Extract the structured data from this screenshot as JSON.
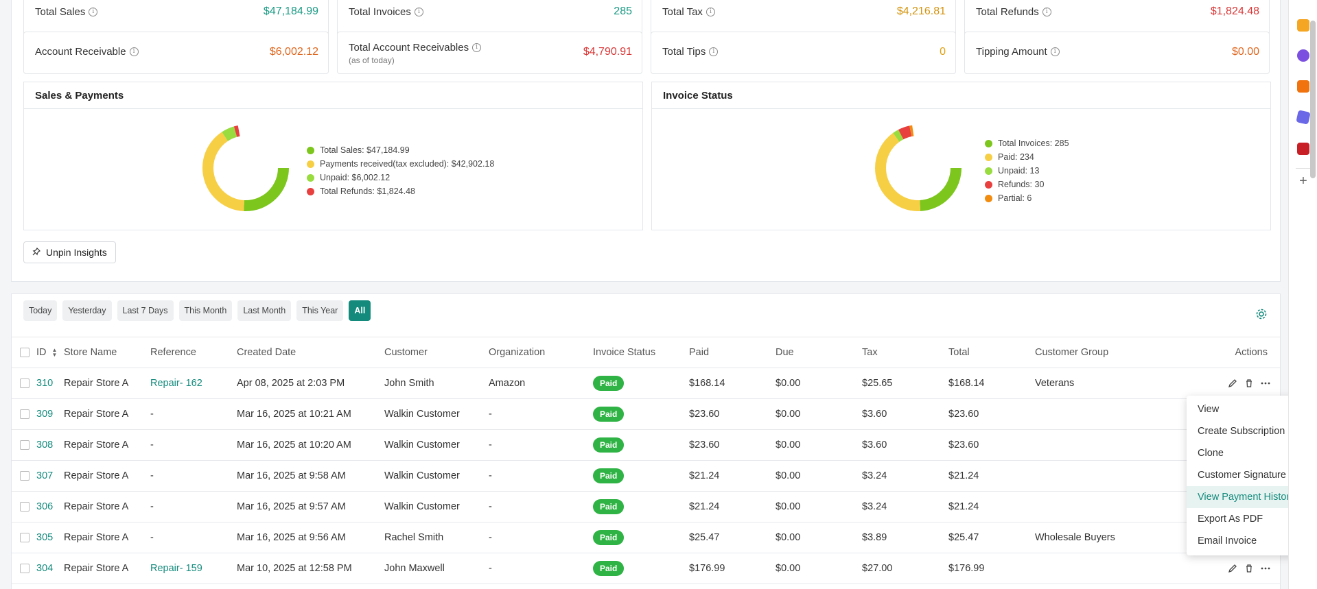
{
  "stats_row1": [
    {
      "label": "Total Sales",
      "value": "$47,184.99",
      "color": "#1a9a84"
    },
    {
      "label": "Total Invoices",
      "value": "285",
      "color": "#1a9a84"
    },
    {
      "label": "Total Tax",
      "value": "$4,216.81",
      "color": "#d4940f"
    },
    {
      "label": "Total Refunds",
      "value": "$1,824.48",
      "color": "#d93636"
    }
  ],
  "stats_row2": [
    {
      "label": "Account Receivable",
      "value": "$6,002.12",
      "color": "#e0651c"
    },
    {
      "label": "Total Account Receivables",
      "sub": "(as of today)",
      "value": "$4,790.91",
      "color": "#d93636"
    },
    {
      "label": "Total Tips",
      "value": "0",
      "color": "#e0a010"
    },
    {
      "label": "Tipping Amount",
      "value": "$0.00",
      "color": "#e0651c"
    }
  ],
  "sales_payments": {
    "title": "Sales & Payments",
    "legend": [
      {
        "label": "Total Sales: $47,184.99",
        "color": "#7cc61d"
      },
      {
        "label": "Payments received(tax excluded): $42,902.18",
        "color": "#f7cf45"
      },
      {
        "label": "Unpaid: $6,002.12",
        "color": "#98dc3f"
      },
      {
        "label": "Total Refunds: $1,824.48",
        "color": "#e8403e"
      }
    ]
  },
  "invoice_status": {
    "title": "Invoice Status",
    "legend": [
      {
        "label": "Total Invoices: 285",
        "color": "#7cc61d"
      },
      {
        "label": "Paid: 234",
        "color": "#f7cf45"
      },
      {
        "label": "Unpaid: 13",
        "color": "#98dc3f"
      },
      {
        "label": "Refunds: 30",
        "color": "#e8403e"
      },
      {
        "label": "Partial: 6",
        "color": "#f28c0f"
      }
    ]
  },
  "unpin_label": "Unpin Insights",
  "filters": [
    "Today",
    "Yesterday",
    "Last 7 Days",
    "This Month",
    "Last Month",
    "This Year",
    "All"
  ],
  "active_filter": "All",
  "columns": [
    "ID",
    "Store Name",
    "Reference",
    "Created Date",
    "Customer",
    "Organization",
    "Invoice Status",
    "Paid",
    "Due",
    "Tax",
    "Total",
    "Customer Group",
    "Actions"
  ],
  "rows": [
    {
      "id": "310",
      "store": "Repair Store A",
      "ref": "Repair- 162",
      "date": "Apr 08, 2025 at 2:03 PM",
      "customer": "John Smith",
      "org": "Amazon",
      "status": "Paid",
      "paid": "$168.14",
      "due": "$0.00",
      "tax": "$25.65",
      "total": "$168.14",
      "group": "Veterans"
    },
    {
      "id": "309",
      "store": "Repair Store A",
      "ref": "-",
      "date": "Mar 16, 2025 at 10:21 AM",
      "customer": "Walkin Customer",
      "org": "-",
      "status": "Paid",
      "paid": "$23.60",
      "due": "$0.00",
      "tax": "$3.60",
      "total": "$23.60",
      "group": ""
    },
    {
      "id": "308",
      "store": "Repair Store A",
      "ref": "-",
      "date": "Mar 16, 2025 at 10:20 AM",
      "customer": "Walkin Customer",
      "org": "-",
      "status": "Paid",
      "paid": "$23.60",
      "due": "$0.00",
      "tax": "$3.60",
      "total": "$23.60",
      "group": ""
    },
    {
      "id": "307",
      "store": "Repair Store A",
      "ref": "-",
      "date": "Mar 16, 2025 at 9:58 AM",
      "customer": "Walkin Customer",
      "org": "-",
      "status": "Paid",
      "paid": "$21.24",
      "due": "$0.00",
      "tax": "$3.24",
      "total": "$21.24",
      "group": ""
    },
    {
      "id": "306",
      "store": "Repair Store A",
      "ref": "-",
      "date": "Mar 16, 2025 at 9:57 AM",
      "customer": "Walkin Customer",
      "org": "-",
      "status": "Paid",
      "paid": "$21.24",
      "due": "$0.00",
      "tax": "$3.24",
      "total": "$21.24",
      "group": ""
    },
    {
      "id": "305",
      "store": "Repair Store A",
      "ref": "-",
      "date": "Mar 16, 2025 at 9:56 AM",
      "customer": "Rachel Smith",
      "org": "-",
      "status": "Paid",
      "paid": "$25.47",
      "due": "$0.00",
      "tax": "$3.89",
      "total": "$25.47",
      "group": "Wholesale Buyers"
    },
    {
      "id": "304",
      "store": "Repair Store A",
      "ref": "Repair- 159",
      "date": "Mar 10, 2025 at 12:58 PM",
      "customer": "John Maxwell",
      "org": "-",
      "status": "Paid",
      "paid": "$176.99",
      "due": "$0.00",
      "tax": "$27.00",
      "total": "$176.99",
      "group": ""
    }
  ],
  "action_menu": [
    "View",
    "Create Subscription",
    "Clone",
    "Customer Signature",
    "View Payment History",
    "Export As PDF",
    "Email Invoice"
  ],
  "action_menu_highlighted": "View Payment History"
}
